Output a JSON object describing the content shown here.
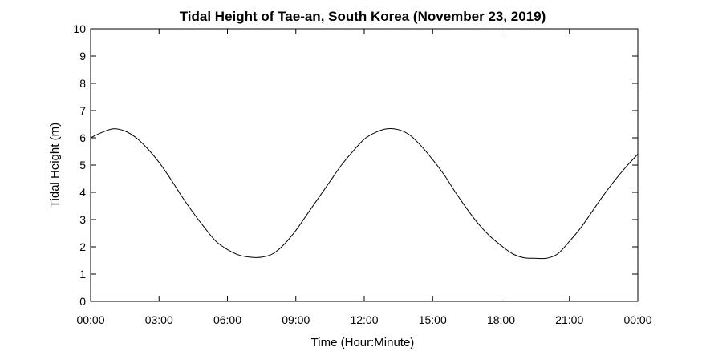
{
  "chart_data": {
    "type": "line",
    "title": "Tidal Height of Tae-an, South Korea (November 23, 2019)",
    "xlabel": "Time (Hour:Minute)",
    "ylabel": "Tidal Height (m)",
    "xlim": [
      "00:00",
      "24:00"
    ],
    "ylim": [
      0,
      10
    ],
    "x_tick_labels": [
      "00:00",
      "03:00",
      "06:00",
      "09:00",
      "12:00",
      "15:00",
      "18:00",
      "21:00",
      "00:00"
    ],
    "y_tick_labels": [
      "0",
      "1",
      "2",
      "3",
      "4",
      "5",
      "6",
      "7",
      "8",
      "9",
      "10"
    ],
    "grid": false,
    "line_color": "#000000",
    "series": [
      {
        "x": [
          "00:00",
          "00:30",
          "01:00",
          "01:30",
          "02:00",
          "02:30",
          "03:00",
          "03:30",
          "04:00",
          "04:30",
          "05:00",
          "05:30",
          "06:00",
          "06:30",
          "07:00",
          "07:30",
          "08:00",
          "08:30",
          "09:00",
          "09:30",
          "10:00",
          "10:30",
          "11:00",
          "11:30",
          "12:00",
          "12:30",
          "13:00",
          "13:30",
          "14:00",
          "14:30",
          "15:00",
          "15:30",
          "16:00",
          "16:30",
          "17:00",
          "17:30",
          "18:00",
          "18:30",
          "19:00",
          "19:30",
          "20:00",
          "20:30",
          "21:00",
          "21:30",
          "22:00",
          "22:30",
          "23:00",
          "23:30",
          "24:00"
        ],
        "y": [
          6.0,
          6.2,
          6.33,
          6.25,
          6.0,
          5.6,
          5.1,
          4.5,
          3.85,
          3.25,
          2.7,
          2.2,
          1.9,
          1.7,
          1.62,
          1.62,
          1.75,
          2.1,
          2.6,
          3.2,
          3.8,
          4.4,
          5.0,
          5.5,
          5.95,
          6.2,
          6.33,
          6.3,
          6.1,
          5.7,
          5.2,
          4.65,
          4.0,
          3.4,
          2.85,
          2.4,
          2.05,
          1.75,
          1.6,
          1.58,
          1.58,
          1.75,
          2.2,
          2.7,
          3.3,
          3.9,
          4.45,
          4.95,
          5.4
        ]
      }
    ]
  }
}
